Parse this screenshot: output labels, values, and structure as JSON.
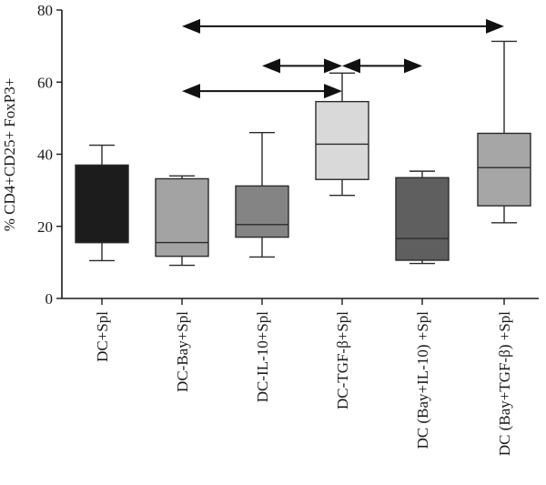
{
  "chart_data": {
    "type": "box",
    "title": "",
    "xlabel": "",
    "ylabel": "% CD4+CD25+ FoxP3+",
    "ylim": [
      0,
      80
    ],
    "yticks": [
      0,
      20,
      40,
      60,
      80
    ],
    "grid": false,
    "categories": [
      "DC+Spl",
      "DC-Bay+Spl",
      "DC-IL-10+Spl",
      "DC-TGF-β+Spl",
      "DC (Bay+IL-10) +Spl",
      "DC (Bay+TGF-β) +Spl"
    ],
    "boxes": [
      {
        "min": 10.5,
        "q1": 15.5,
        "median": 15.5,
        "q3": 37.0,
        "max": 42.5,
        "color": "#1c1c1c"
      },
      {
        "min": 9.2,
        "q1": 11.7,
        "median": 15.5,
        "q3": 33.2,
        "max": 34.0,
        "color": "#a3a3a3"
      },
      {
        "min": 11.5,
        "q1": 17.0,
        "median": 20.5,
        "q3": 31.2,
        "max": 46.0,
        "color": "#848484"
      },
      {
        "min": 28.6,
        "q1": 33.0,
        "median": 42.8,
        "q3": 54.6,
        "max": 62.5,
        "color": "#d9d9d9"
      },
      {
        "min": 9.7,
        "q1": 10.6,
        "median": 16.6,
        "q3": 33.5,
        "max": 35.3,
        "color": "#5f5f5f"
      },
      {
        "min": 21.0,
        "q1": 25.7,
        "median": 36.3,
        "q3": 45.8,
        "max": 71.3,
        "color": "#a6a6a6"
      }
    ],
    "comparison_arrows": [
      {
        "from": 1,
        "to": 5,
        "y": 75.5
      },
      {
        "from": 2,
        "to": 3,
        "y": 64.5
      },
      {
        "from": 3,
        "to": 4,
        "y": 64.5
      },
      {
        "from": 1,
        "to": 3,
        "y": 57.5
      }
    ]
  }
}
